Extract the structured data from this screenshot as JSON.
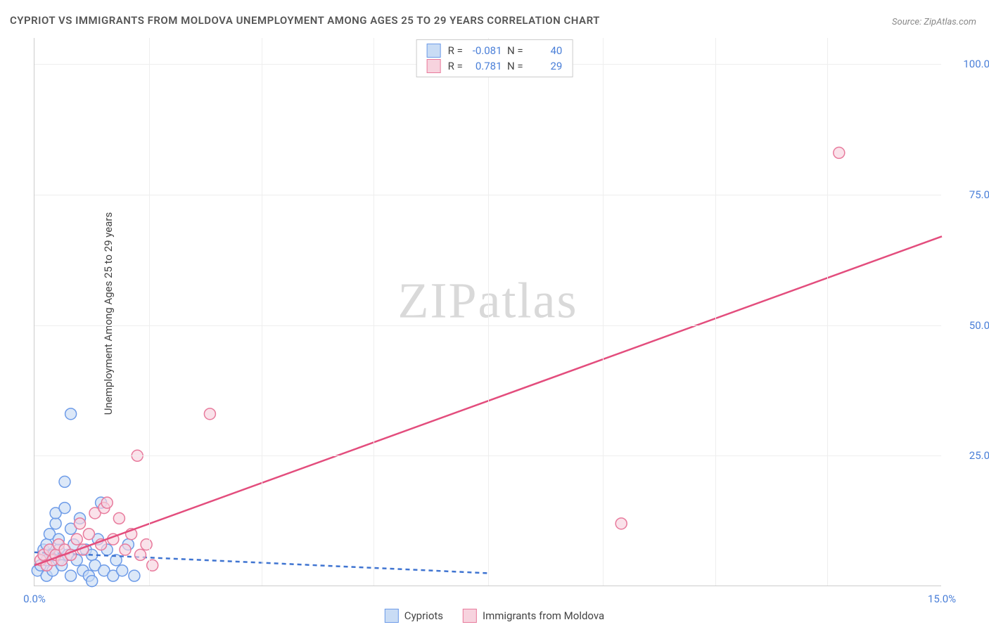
{
  "title": "CYPRIOT VS IMMIGRANTS FROM MOLDOVA UNEMPLOYMENT AMONG AGES 25 TO 29 YEARS CORRELATION CHART",
  "source": "Source: ZipAtlas.com",
  "ylabel": "Unemployment Among Ages 25 to 29 years",
  "watermark_a": "ZIP",
  "watermark_b": "atlas",
  "chart": {
    "type": "scatter",
    "xlim": [
      0,
      15
    ],
    "ylim": [
      0,
      105
    ],
    "xtick_values": [
      0,
      15
    ],
    "xtick_labels": [
      "0.0%",
      "15.0%"
    ],
    "ytick_values": [
      25,
      50,
      75,
      100
    ],
    "ytick_labels": [
      "25.0%",
      "50.0%",
      "75.0%",
      "100.0%"
    ],
    "x_gridlines": [
      1.9,
      3.75,
      5.6,
      7.5,
      9.4,
      11.25,
      13.1
    ],
    "background_color": "#ffffff",
    "grid_color": "#eeeeee",
    "axis_color": "#cccccc",
    "tick_text_color": "#4a7fd8",
    "marker_radius": 8,
    "marker_stroke_width": 1.5,
    "trend_line_width": 2.5,
    "series": [
      {
        "name": "Cypriots",
        "label": "Cypriots",
        "fill": "#c9dcf5",
        "stroke": "#6d9be8",
        "trend_color": "#3f74d1",
        "trend_dash": "6,5",
        "R": "-0.081",
        "N": "40",
        "trend": {
          "x1": 0,
          "y1": 6.5,
          "x2": 7.5,
          "y2": 2.5
        },
        "points": [
          [
            0.05,
            3
          ],
          [
            0.1,
            4
          ],
          [
            0.15,
            6
          ],
          [
            0.15,
            7
          ],
          [
            0.2,
            2
          ],
          [
            0.2,
            5
          ],
          [
            0.2,
            8
          ],
          [
            0.25,
            10
          ],
          [
            0.3,
            3
          ],
          [
            0.3,
            6
          ],
          [
            0.35,
            12
          ],
          [
            0.35,
            14
          ],
          [
            0.4,
            5
          ],
          [
            0.4,
            7
          ],
          [
            0.4,
            9
          ],
          [
            0.45,
            4
          ],
          [
            0.5,
            15
          ],
          [
            0.5,
            20
          ],
          [
            0.55,
            6
          ],
          [
            0.6,
            2
          ],
          [
            0.6,
            11
          ],
          [
            0.65,
            8
          ],
          [
            0.7,
            5
          ],
          [
            0.75,
            13
          ],
          [
            0.8,
            3
          ],
          [
            0.85,
            7
          ],
          [
            0.9,
            2
          ],
          [
            0.95,
            6
          ],
          [
            1.0,
            4
          ],
          [
            1.05,
            9
          ],
          [
            1.1,
            16
          ],
          [
            1.15,
            3
          ],
          [
            1.2,
            7
          ],
          [
            1.3,
            2
          ],
          [
            1.35,
            5
          ],
          [
            1.45,
            3
          ],
          [
            1.55,
            8
          ],
          [
            1.65,
            2
          ],
          [
            0.6,
            33
          ],
          [
            0.95,
            1
          ]
        ]
      },
      {
        "name": "Immigrants from Moldova",
        "label": "Immigrants from Moldova",
        "fill": "#f7d3de",
        "stroke": "#e87a9c",
        "trend_color": "#e34d7d",
        "trend_dash": null,
        "R": "0.781",
        "N": "29",
        "trend": {
          "x1": 0,
          "y1": 4,
          "x2": 15,
          "y2": 67
        },
        "points": [
          [
            0.1,
            5
          ],
          [
            0.15,
            6
          ],
          [
            0.2,
            4
          ],
          [
            0.25,
            7
          ],
          [
            0.3,
            5
          ],
          [
            0.35,
            6
          ],
          [
            0.4,
            8
          ],
          [
            0.45,
            5
          ],
          [
            0.5,
            7
          ],
          [
            0.6,
            6
          ],
          [
            0.7,
            9
          ],
          [
            0.75,
            12
          ],
          [
            0.8,
            7
          ],
          [
            0.9,
            10
          ],
          [
            1.0,
            14
          ],
          [
            1.1,
            8
          ],
          [
            1.15,
            15
          ],
          [
            1.2,
            16
          ],
          [
            1.3,
            9
          ],
          [
            1.4,
            13
          ],
          [
            1.5,
            7
          ],
          [
            1.6,
            10
          ],
          [
            1.75,
            6
          ],
          [
            1.85,
            8
          ],
          [
            1.95,
            4
          ],
          [
            1.7,
            25
          ],
          [
            2.9,
            33
          ],
          [
            9.7,
            12
          ],
          [
            13.3,
            83
          ]
        ]
      }
    ]
  },
  "stats_box": {
    "R_label": "R =",
    "N_label": "N ="
  }
}
